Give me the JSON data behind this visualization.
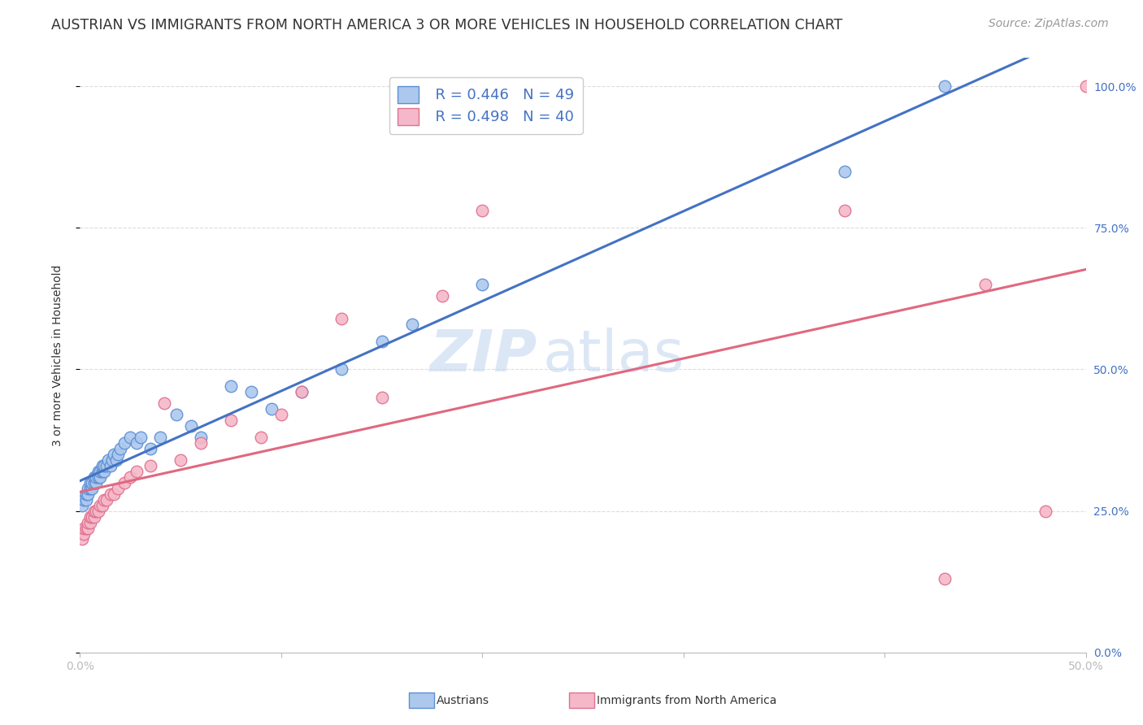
{
  "title": "AUSTRIAN VS IMMIGRANTS FROM NORTH AMERICA 3 OR MORE VEHICLES IN HOUSEHOLD CORRELATION CHART",
  "source": "Source: ZipAtlas.com",
  "ylabel": "3 or more Vehicles in Household",
  "legend_blue_r": "R = 0.446",
  "legend_blue_n": "N = 49",
  "legend_pink_r": "R = 0.498",
  "legend_pink_n": "N = 40",
  "legend_label_blue": "Austrians",
  "legend_label_pink": "Immigrants from North America",
  "blue_color": "#adc8ed",
  "pink_color": "#f5b8c8",
  "blue_edge_color": "#5b8fd4",
  "pink_edge_color": "#e07090",
  "blue_line_color": "#4472c4",
  "pink_line_color": "#e06880",
  "watermark_zip": "ZIP",
  "watermark_atlas": "atlas",
  "blue_x": [
    0.001,
    0.002,
    0.003,
    0.003,
    0.004,
    0.004,
    0.005,
    0.005,
    0.006,
    0.006,
    0.007,
    0.007,
    0.008,
    0.008,
    0.009,
    0.009,
    0.01,
    0.01,
    0.011,
    0.011,
    0.012,
    0.012,
    0.013,
    0.014,
    0.015,
    0.016,
    0.017,
    0.018,
    0.019,
    0.02,
    0.022,
    0.025,
    0.028,
    0.03,
    0.035,
    0.04,
    0.048,
    0.055,
    0.06,
    0.075,
    0.085,
    0.095,
    0.11,
    0.13,
    0.15,
    0.165,
    0.2,
    0.38,
    0.43
  ],
  "blue_y": [
    0.26,
    0.27,
    0.27,
    0.28,
    0.28,
    0.29,
    0.29,
    0.3,
    0.29,
    0.3,
    0.3,
    0.31,
    0.3,
    0.31,
    0.31,
    0.32,
    0.31,
    0.32,
    0.32,
    0.33,
    0.32,
    0.33,
    0.33,
    0.34,
    0.33,
    0.34,
    0.35,
    0.34,
    0.35,
    0.36,
    0.37,
    0.38,
    0.37,
    0.38,
    0.36,
    0.38,
    0.42,
    0.4,
    0.38,
    0.47,
    0.46,
    0.43,
    0.46,
    0.5,
    0.55,
    0.58,
    0.65,
    0.85,
    1.0
  ],
  "pink_x": [
    0.001,
    0.002,
    0.002,
    0.003,
    0.004,
    0.004,
    0.005,
    0.005,
    0.006,
    0.007,
    0.007,
    0.008,
    0.009,
    0.01,
    0.011,
    0.012,
    0.013,
    0.015,
    0.017,
    0.019,
    0.022,
    0.025,
    0.028,
    0.035,
    0.042,
    0.05,
    0.06,
    0.075,
    0.09,
    0.1,
    0.11,
    0.13,
    0.15,
    0.18,
    0.2,
    0.38,
    0.43,
    0.45,
    0.48,
    0.5
  ],
  "pink_y": [
    0.2,
    0.21,
    0.22,
    0.22,
    0.22,
    0.23,
    0.23,
    0.24,
    0.24,
    0.24,
    0.25,
    0.25,
    0.25,
    0.26,
    0.26,
    0.27,
    0.27,
    0.28,
    0.28,
    0.29,
    0.3,
    0.31,
    0.32,
    0.33,
    0.44,
    0.34,
    0.37,
    0.41,
    0.38,
    0.42,
    0.46,
    0.59,
    0.45,
    0.63,
    0.78,
    0.78,
    0.13,
    0.65,
    0.25,
    1.0
  ],
  "xmin": 0.0,
  "xmax": 0.5,
  "ymin": 0.0,
  "ymax": 1.05,
  "x_ticks": [
    0.0,
    0.1,
    0.2,
    0.3,
    0.4,
    0.5
  ],
  "x_tick_labels": [
    "0.0%",
    "",
    "",
    "",
    "",
    "50.0%"
  ],
  "y_ticks": [
    0.0,
    0.25,
    0.5,
    0.75,
    1.0
  ],
  "y_tick_labels_right": [
    "0.0%",
    "25.0%",
    "50.0%",
    "75.0%",
    "100.0%"
  ],
  "grid_color": "#dddddd",
  "background_color": "#ffffff",
  "title_fontsize": 12.5,
  "source_fontsize": 10,
  "axis_label_fontsize": 10,
  "tick_fontsize": 10,
  "legend_fontsize": 13,
  "watermark_fontsize_zip": 52,
  "watermark_fontsize_atlas": 52,
  "watermark_color_zip": "#c5d8f0",
  "watermark_color_atlas": "#c5d8f0",
  "watermark_alpha": 0.6
}
